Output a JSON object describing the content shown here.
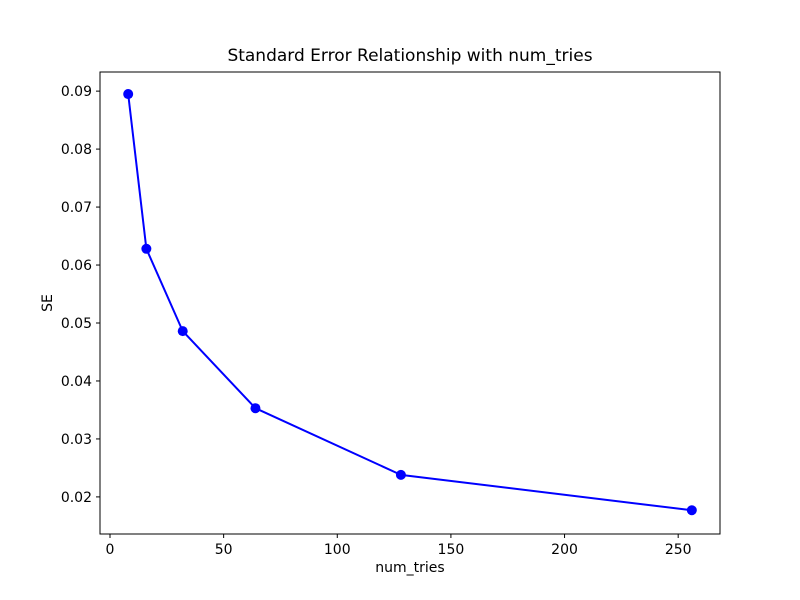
{
  "figure": {
    "background_color": "#ffffff",
    "text_color": "#000000",
    "axes_color": "#000000"
  },
  "chart_data": {
    "type": "line",
    "title": "Standard Error Relationship with num_tries",
    "xlabel": "num_tries",
    "ylabel": "SE",
    "series": [
      {
        "name": "SE",
        "x": [
          8,
          16,
          32,
          64,
          128,
          256
        ],
        "y": [
          0.0895,
          0.0628,
          0.0486,
          0.0353,
          0.0238,
          0.0177
        ],
        "line_color": "#0000ff",
        "marker": "o",
        "marker_color": "#0000ff"
      }
    ],
    "xlim": [
      -4.4,
      268.4
    ],
    "ylim": [
      0.0136,
      0.0933
    ],
    "xticks": [
      0,
      50,
      100,
      150,
      200,
      250
    ],
    "xtick_labels": [
      "0",
      "50",
      "100",
      "150",
      "200",
      "250"
    ],
    "yticks": [
      0.02,
      0.03,
      0.04,
      0.05,
      0.06,
      0.07,
      0.08,
      0.09
    ],
    "ytick_labels": [
      "0.02",
      "0.03",
      "0.04",
      "0.05",
      "0.06",
      "0.07",
      "0.08",
      "0.09"
    ],
    "grid": false,
    "legend": null
  }
}
